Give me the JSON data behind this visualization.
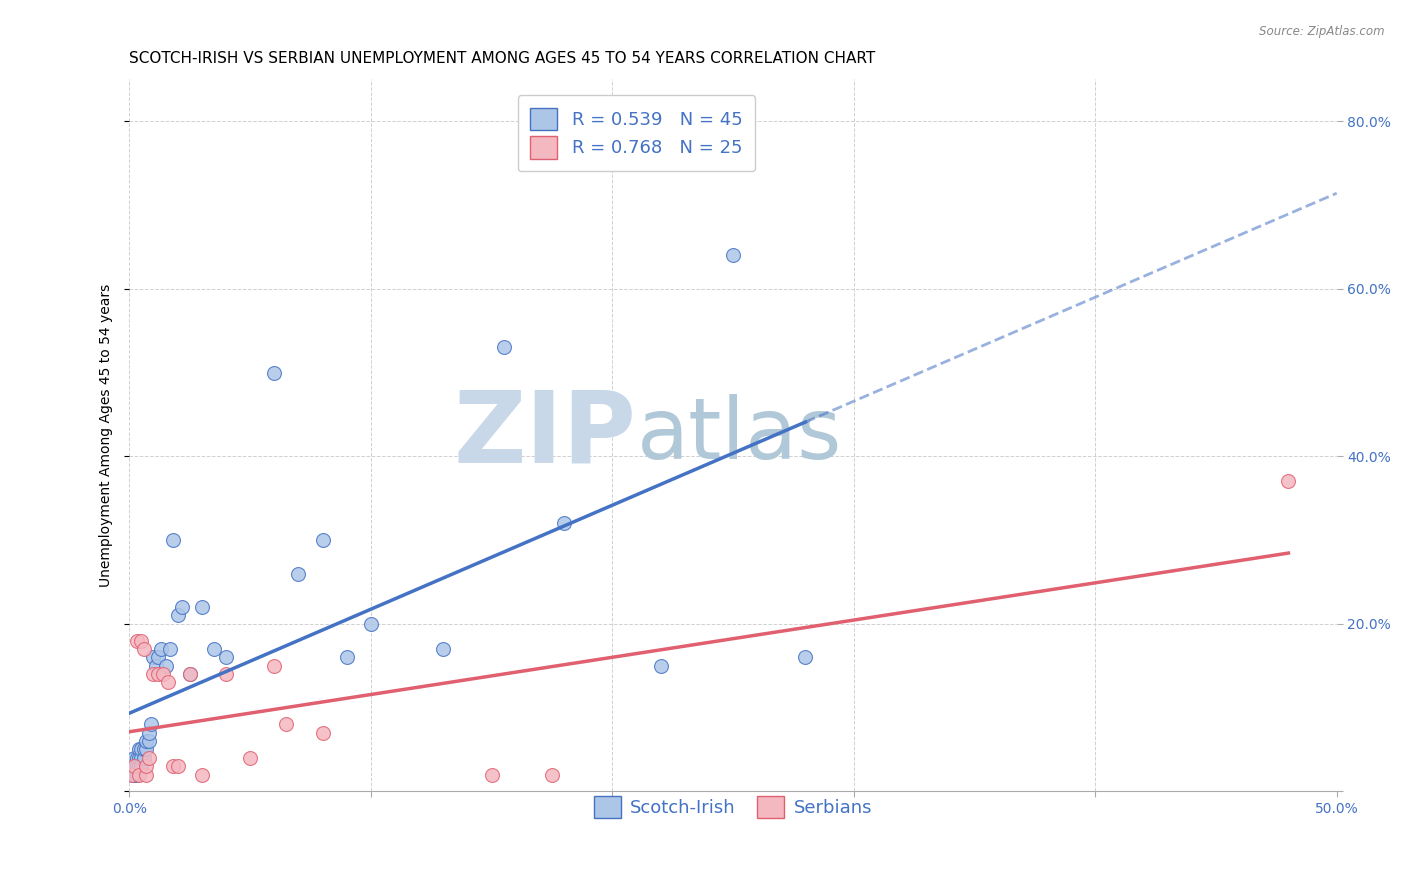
{
  "title": "SCOTCH-IRISH VS SERBIAN UNEMPLOYMENT AMONG AGES 45 TO 54 YEARS CORRELATION CHART",
  "source": "Source: ZipAtlas.com",
  "ylabel": "Unemployment Among Ages 45 to 54 years",
  "xlim": [
    0.0,
    0.5
  ],
  "ylim": [
    0.0,
    0.85
  ],
  "xticks": [
    0.0,
    0.1,
    0.2,
    0.3,
    0.4,
    0.5
  ],
  "yticks": [
    0.0,
    0.2,
    0.4,
    0.6,
    0.8
  ],
  "xticklabels": [
    "0.0%",
    "",
    "",
    "",
    "",
    "50.0%"
  ],
  "yticklabels": [
    "",
    "20.0%",
    "40.0%",
    "60.0%",
    "80.0%"
  ],
  "scotch_irish_color": "#adc6e8",
  "serbian_color": "#f4b8c1",
  "trend_scotch_color": "#4472c4",
  "trend_serbian_color": "#e06070",
  "tick_color": "#4472c4",
  "scotch_irish_R": 0.539,
  "scotch_irish_N": 45,
  "serbian_R": 0.768,
  "serbian_N": 25,
  "scotch_irish_x": [
    0.001,
    0.001,
    0.002,
    0.002,
    0.002,
    0.003,
    0.003,
    0.003,
    0.004,
    0.004,
    0.004,
    0.005,
    0.005,
    0.005,
    0.006,
    0.006,
    0.007,
    0.007,
    0.008,
    0.008,
    0.009,
    0.01,
    0.011,
    0.012,
    0.013,
    0.015,
    0.017,
    0.018,
    0.02,
    0.022,
    0.025,
    0.03,
    0.035,
    0.04,
    0.06,
    0.07,
    0.08,
    0.09,
    0.1,
    0.13,
    0.155,
    0.18,
    0.22,
    0.25,
    0.28
  ],
  "scotch_irish_y": [
    0.02,
    0.03,
    0.02,
    0.03,
    0.04,
    0.02,
    0.03,
    0.04,
    0.03,
    0.04,
    0.05,
    0.03,
    0.04,
    0.05,
    0.04,
    0.05,
    0.05,
    0.06,
    0.06,
    0.07,
    0.08,
    0.16,
    0.15,
    0.16,
    0.17,
    0.15,
    0.17,
    0.3,
    0.21,
    0.22,
    0.14,
    0.22,
    0.17,
    0.16,
    0.5,
    0.26,
    0.3,
    0.16,
    0.2,
    0.17,
    0.53,
    0.32,
    0.15,
    0.64,
    0.16
  ],
  "serbian_x": [
    0.001,
    0.002,
    0.003,
    0.004,
    0.005,
    0.006,
    0.007,
    0.007,
    0.008,
    0.01,
    0.012,
    0.014,
    0.016,
    0.018,
    0.02,
    0.025,
    0.03,
    0.04,
    0.05,
    0.06,
    0.065,
    0.08,
    0.15,
    0.175,
    0.48
  ],
  "serbian_y": [
    0.02,
    0.03,
    0.18,
    0.02,
    0.18,
    0.17,
    0.02,
    0.03,
    0.04,
    0.14,
    0.14,
    0.14,
    0.13,
    0.03,
    0.03,
    0.14,
    0.02,
    0.14,
    0.04,
    0.15,
    0.08,
    0.07,
    0.02,
    0.02,
    0.37
  ],
  "background_color": "#ffffff",
  "grid_color": "#cccccc",
  "title_fontsize": 11,
  "axis_label_fontsize": 10,
  "tick_fontsize": 10,
  "legend_fontsize": 13,
  "marker_size": 100,
  "watermark_zip_color": "#c8d8e8",
  "watermark_atlas_color": "#b0c8d8",
  "watermark_fontsize": 72
}
